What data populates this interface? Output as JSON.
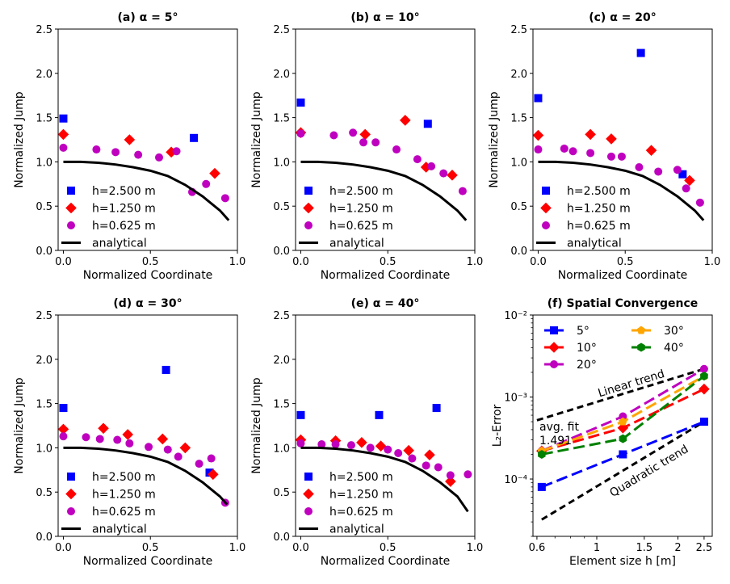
{
  "chart_data": [
    {
      "type": "scatter",
      "title": "(a) α = 5°",
      "xlabel": "Normalized Coordinate",
      "ylabel": "Normalized Jump",
      "xlim": [
        -0.03,
        1.0
      ],
      "ylim": [
        0.0,
        2.5
      ],
      "xticks": [
        "0.0",
        "0.5",
        "1.0"
      ],
      "yticks": [
        "0.0",
        "0.5",
        "1.0",
        "1.5",
        "2.0",
        "2.5"
      ],
      "legend_loc": "lower-left",
      "series": [
        {
          "name": "h=2.500 m",
          "marker": "square",
          "color": "#0000ff",
          "x": [
            0.0,
            0.75
          ],
          "y": [
            1.49,
            1.27
          ]
        },
        {
          "name": "h=1.250 m",
          "marker": "diamond",
          "color": "#ff0000",
          "x": [
            0.0,
            0.38,
            0.62,
            0.87
          ],
          "y": [
            1.31,
            1.25,
            1.11,
            0.87
          ]
        },
        {
          "name": "h=0.625 m",
          "marker": "circle",
          "color": "#bf00bf",
          "x": [
            0.0,
            0.19,
            0.3,
            0.43,
            0.55,
            0.65,
            0.74,
            0.82,
            0.93
          ],
          "y": [
            1.16,
            1.14,
            1.11,
            1.08,
            1.05,
            1.12,
            0.66,
            0.75,
            0.59
          ]
        },
        {
          "name": "analytical",
          "line": true,
          "color": "#000000",
          "x": [
            0.0,
            0.1,
            0.2,
            0.3,
            0.4,
            0.5,
            0.6,
            0.7,
            0.8,
            0.9,
            0.95
          ],
          "y": [
            1.0,
            1.0,
            0.99,
            0.97,
            0.94,
            0.9,
            0.84,
            0.74,
            0.61,
            0.45,
            0.34
          ]
        }
      ]
    },
    {
      "type": "scatter",
      "title": "(b) α = 10°",
      "xlabel": "Normalized Coordinate",
      "ylabel": "Normalized Jump",
      "xlim": [
        -0.03,
        1.0
      ],
      "ylim": [
        0.0,
        2.5
      ],
      "xticks": [
        "0.0",
        "0.5",
        "1.0"
      ],
      "yticks": [
        "0.0",
        "0.5",
        "1.0",
        "1.5",
        "2.0",
        "2.5"
      ],
      "legend_loc": "lower-left",
      "series": [
        {
          "name": "h=2.500 m",
          "marker": "square",
          "color": "#0000ff",
          "x": [
            0.0,
            0.73
          ],
          "y": [
            1.67,
            1.43
          ]
        },
        {
          "name": "h=1.250 m",
          "marker": "diamond",
          "color": "#ff0000",
          "x": [
            0.0,
            0.37,
            0.6,
            0.72,
            0.87
          ],
          "y": [
            1.33,
            1.31,
            1.47,
            0.94,
            0.85
          ]
        },
        {
          "name": "h=0.625 m",
          "marker": "circle",
          "color": "#bf00bf",
          "x": [
            0.0,
            0.19,
            0.3,
            0.36,
            0.43,
            0.55,
            0.67,
            0.75,
            0.82,
            0.93
          ],
          "y": [
            1.32,
            1.3,
            1.33,
            1.22,
            1.22,
            1.14,
            1.03,
            0.95,
            0.87,
            0.67
          ]
        },
        {
          "name": "analytical",
          "line": true,
          "color": "#000000",
          "x": [
            0.0,
            0.1,
            0.2,
            0.3,
            0.4,
            0.5,
            0.6,
            0.7,
            0.8,
            0.9,
            0.95
          ],
          "y": [
            1.0,
            1.0,
            0.99,
            0.97,
            0.94,
            0.9,
            0.84,
            0.74,
            0.61,
            0.45,
            0.34
          ]
        }
      ]
    },
    {
      "type": "scatter",
      "title": "(c) α = 20°",
      "xlabel": "Normalized Coordinate",
      "ylabel": "Normalized Jump",
      "xlim": [
        -0.03,
        1.0
      ],
      "ylim": [
        0.0,
        2.5
      ],
      "xticks": [
        "0.0",
        "0.5",
        "1.0"
      ],
      "yticks": [
        "0.0",
        "0.5",
        "1.0",
        "1.5",
        "2.0",
        "2.5"
      ],
      "legend_loc": "lower-left",
      "series": [
        {
          "name": "h=2.500 m",
          "marker": "square",
          "color": "#0000ff",
          "x": [
            0.0,
            0.59,
            0.83
          ],
          "y": [
            1.72,
            2.23,
            0.86
          ]
        },
        {
          "name": "h=1.250 m",
          "marker": "diamond",
          "color": "#ff0000",
          "x": [
            0.0,
            0.3,
            0.42,
            0.65,
            0.87
          ],
          "y": [
            1.3,
            1.31,
            1.26,
            1.13,
            0.79
          ]
        },
        {
          "name": "h=0.625 m",
          "marker": "circle",
          "color": "#bf00bf",
          "x": [
            0.0,
            0.15,
            0.2,
            0.3,
            0.42,
            0.48,
            0.58,
            0.69,
            0.8,
            0.85,
            0.93
          ],
          "y": [
            1.14,
            1.15,
            1.12,
            1.1,
            1.06,
            1.06,
            0.94,
            0.89,
            0.91,
            0.7,
            0.54
          ]
        },
        {
          "name": "analytical",
          "line": true,
          "color": "#000000",
          "x": [
            0.0,
            0.1,
            0.2,
            0.3,
            0.4,
            0.5,
            0.6,
            0.7,
            0.8,
            0.9,
            0.95
          ],
          "y": [
            1.0,
            1.0,
            0.99,
            0.97,
            0.94,
            0.9,
            0.84,
            0.74,
            0.61,
            0.45,
            0.34
          ]
        }
      ]
    },
    {
      "type": "scatter",
      "title": "(d) α = 30°",
      "xlabel": "Normalized Coordinate",
      "ylabel": "Normalized Jump",
      "xlim": [
        -0.03,
        1.0
      ],
      "ylim": [
        0.0,
        2.5
      ],
      "xticks": [
        "0.0",
        "0.5",
        "1.0"
      ],
      "yticks": [
        "0.0",
        "0.5",
        "1.0",
        "1.5",
        "2.0",
        "2.5"
      ],
      "legend_loc": "lower-left",
      "series": [
        {
          "name": "h=2.500 m",
          "marker": "square",
          "color": "#0000ff",
          "x": [
            0.0,
            0.59,
            0.84
          ],
          "y": [
            1.45,
            1.88,
            0.72
          ]
        },
        {
          "name": "h=1.250 m",
          "marker": "diamond",
          "color": "#ff0000",
          "x": [
            0.0,
            0.23,
            0.37,
            0.57,
            0.7,
            0.86
          ],
          "y": [
            1.21,
            1.22,
            1.15,
            1.1,
            1.0,
            0.7
          ]
        },
        {
          "name": "h=0.625 m",
          "marker": "circle",
          "color": "#bf00bf",
          "x": [
            0.0,
            0.13,
            0.21,
            0.31,
            0.38,
            0.49,
            0.6,
            0.66,
            0.78,
            0.85,
            0.93
          ],
          "y": [
            1.13,
            1.12,
            1.1,
            1.09,
            1.05,
            1.01,
            0.98,
            0.9,
            0.82,
            0.88,
            0.38
          ]
        },
        {
          "name": "analytical",
          "line": true,
          "color": "#000000",
          "x": [
            0.0,
            0.1,
            0.2,
            0.3,
            0.4,
            0.5,
            0.6,
            0.7,
            0.8,
            0.9,
            0.94
          ],
          "y": [
            1.0,
            1.0,
            0.99,
            0.97,
            0.94,
            0.9,
            0.84,
            0.74,
            0.61,
            0.45,
            0.36
          ]
        }
      ]
    },
    {
      "type": "scatter",
      "title": "(e) α = 40°",
      "xlabel": "Normalized Coordinate",
      "ylabel": "Normalized Jump",
      "xlim": [
        -0.03,
        1.0
      ],
      "ylim": [
        0.0,
        2.5
      ],
      "xticks": [
        "0.0",
        "0.5",
        "1.0"
      ],
      "yticks": [
        "0.0",
        "0.5",
        "1.0",
        "1.5",
        "2.0",
        "2.5"
      ],
      "legend_loc": "lower-left",
      "series": [
        {
          "name": "h=2.500 m",
          "marker": "square",
          "color": "#0000ff",
          "x": [
            0.0,
            0.45,
            0.78
          ],
          "y": [
            1.37,
            1.37,
            1.45
          ]
        },
        {
          "name": "h=1.250 m",
          "marker": "diamond",
          "color": "#ff0000",
          "x": [
            0.0,
            0.2,
            0.35,
            0.46,
            0.62,
            0.74,
            0.86
          ],
          "y": [
            1.09,
            1.08,
            1.06,
            1.02,
            0.97,
            0.92,
            0.62
          ]
        },
        {
          "name": "h=0.625 m",
          "marker": "circle",
          "color": "#bf00bf",
          "x": [
            0.0,
            0.12,
            0.2,
            0.29,
            0.4,
            0.5,
            0.56,
            0.64,
            0.72,
            0.79,
            0.86,
            0.96
          ],
          "y": [
            1.05,
            1.04,
            1.04,
            1.03,
            1.0,
            0.98,
            0.94,
            0.88,
            0.8,
            0.78,
            0.69,
            0.7
          ]
        },
        {
          "name": "analytical",
          "line": true,
          "color": "#000000",
          "x": [
            0.0,
            0.1,
            0.2,
            0.3,
            0.4,
            0.5,
            0.6,
            0.7,
            0.8,
            0.9,
            0.96
          ],
          "y": [
            1.0,
            1.0,
            0.99,
            0.97,
            0.94,
            0.9,
            0.84,
            0.74,
            0.61,
            0.45,
            0.28
          ]
        }
      ]
    },
    {
      "type": "line",
      "title": "(f) Spatial Convergence",
      "xlabel": "Element size h [m]",
      "ylabel": "L₂-Error",
      "xscale": "log",
      "yscale": "log",
      "xlim": [
        0.58,
        2.68
      ],
      "ylim": [
        2e-05,
        0.01
      ],
      "xticks": [
        "0.6",
        "1",
        "1.5",
        "2",
        "2.5"
      ],
      "xtick_values": [
        0.6,
        1,
        1.5,
        2,
        2.5
      ],
      "yticks": [
        "10⁻⁴",
        "10⁻³",
        "10⁻²"
      ],
      "ytick_values": [
        0.0001,
        0.001,
        0.01
      ],
      "legend_loc": "top-left",
      "series": [
        {
          "name": "5°",
          "marker": "square",
          "color": "#0000ff",
          "x": [
            0.625,
            1.25,
            2.5
          ],
          "y": [
            8e-05,
            0.0002,
            0.0005
          ]
        },
        {
          "name": "10°",
          "marker": "diamond",
          "color": "#ff0000",
          "x": [
            0.625,
            1.25,
            2.5
          ],
          "y": [
            0.00022,
            0.00042,
            0.00125
          ]
        },
        {
          "name": "20°",
          "marker": "circle",
          "color": "#bf00bf",
          "x": [
            0.625,
            1.25,
            2.5
          ],
          "y": [
            0.00022,
            0.00058,
            0.0022
          ]
        },
        {
          "name": "30°",
          "marker": "pentagon",
          "color": "#ffa500",
          "x": [
            0.625,
            1.25,
            2.5
          ],
          "y": [
            0.00022,
            0.0005,
            0.0018
          ]
        },
        {
          "name": "40°",
          "marker": "hexagon",
          "color": "#008000",
          "x": [
            0.625,
            1.25,
            2.5
          ],
          "y": [
            0.0002,
            0.00031,
            0.0018
          ]
        }
      ],
      "reference_lines": [
        {
          "name": "Linear trend",
          "color": "#000000",
          "x": [
            0.6,
            2.5
          ],
          "y": [
            0.00052,
            0.0022
          ]
        },
        {
          "name": "Quadratic trend",
          "color": "#000000",
          "x": [
            0.625,
            2.5
          ],
          "y": [
            3.2e-05,
            0.0005
          ]
        }
      ],
      "annotation": [
        "avg. fit",
        "1.491"
      ]
    }
  ]
}
